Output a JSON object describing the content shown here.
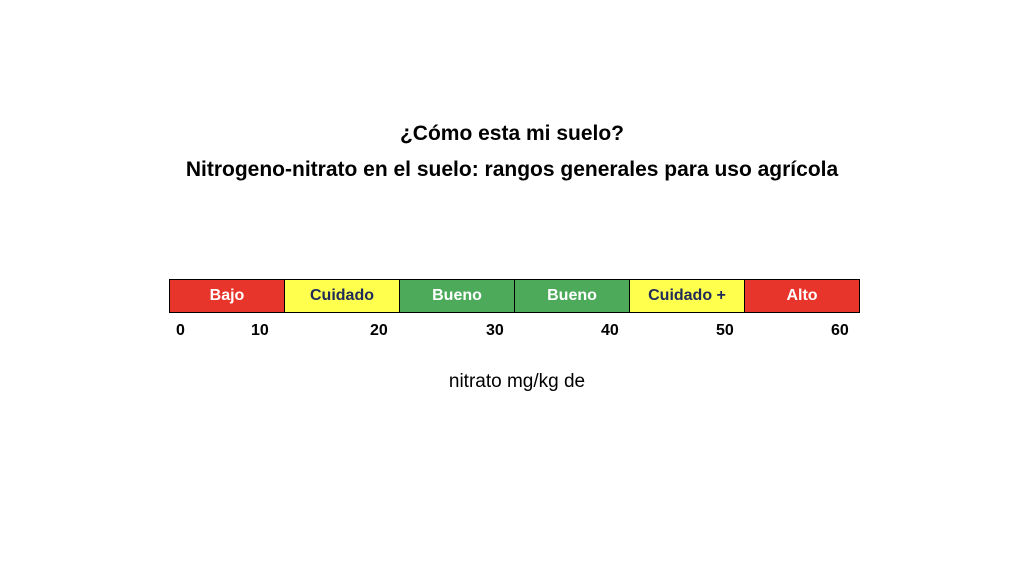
{
  "title_line1": "¿Cómo esta mi suelo?",
  "title_line2": "Nitrogeno-nitrato en el suelo: rangos generales para uso agrícola",
  "unit_label": "nitrato mg/kg de",
  "segments": [
    {
      "label": "Bajo",
      "color": "#e8352b",
      "text_color": "#ffffff"
    },
    {
      "label": "Cuidado",
      "color": "#ffff4d",
      "text_color": "#1f2a5a"
    },
    {
      "label": "Bueno",
      "color": "#4caa5a",
      "text_color": "#ffffff"
    },
    {
      "label": "Bueno",
      "color": "#4caa5a",
      "text_color": "#ffffff"
    },
    {
      "label": "Cuidado +",
      "color": "#ffff4d",
      "text_color": "#1f2a5a"
    },
    {
      "label": "Alto",
      "color": "#e8352b",
      "text_color": "#ffffff"
    }
  ],
  "ticks": [
    "0",
    "10",
    "20",
    "30",
    "40",
    "50",
    "60"
  ]
}
